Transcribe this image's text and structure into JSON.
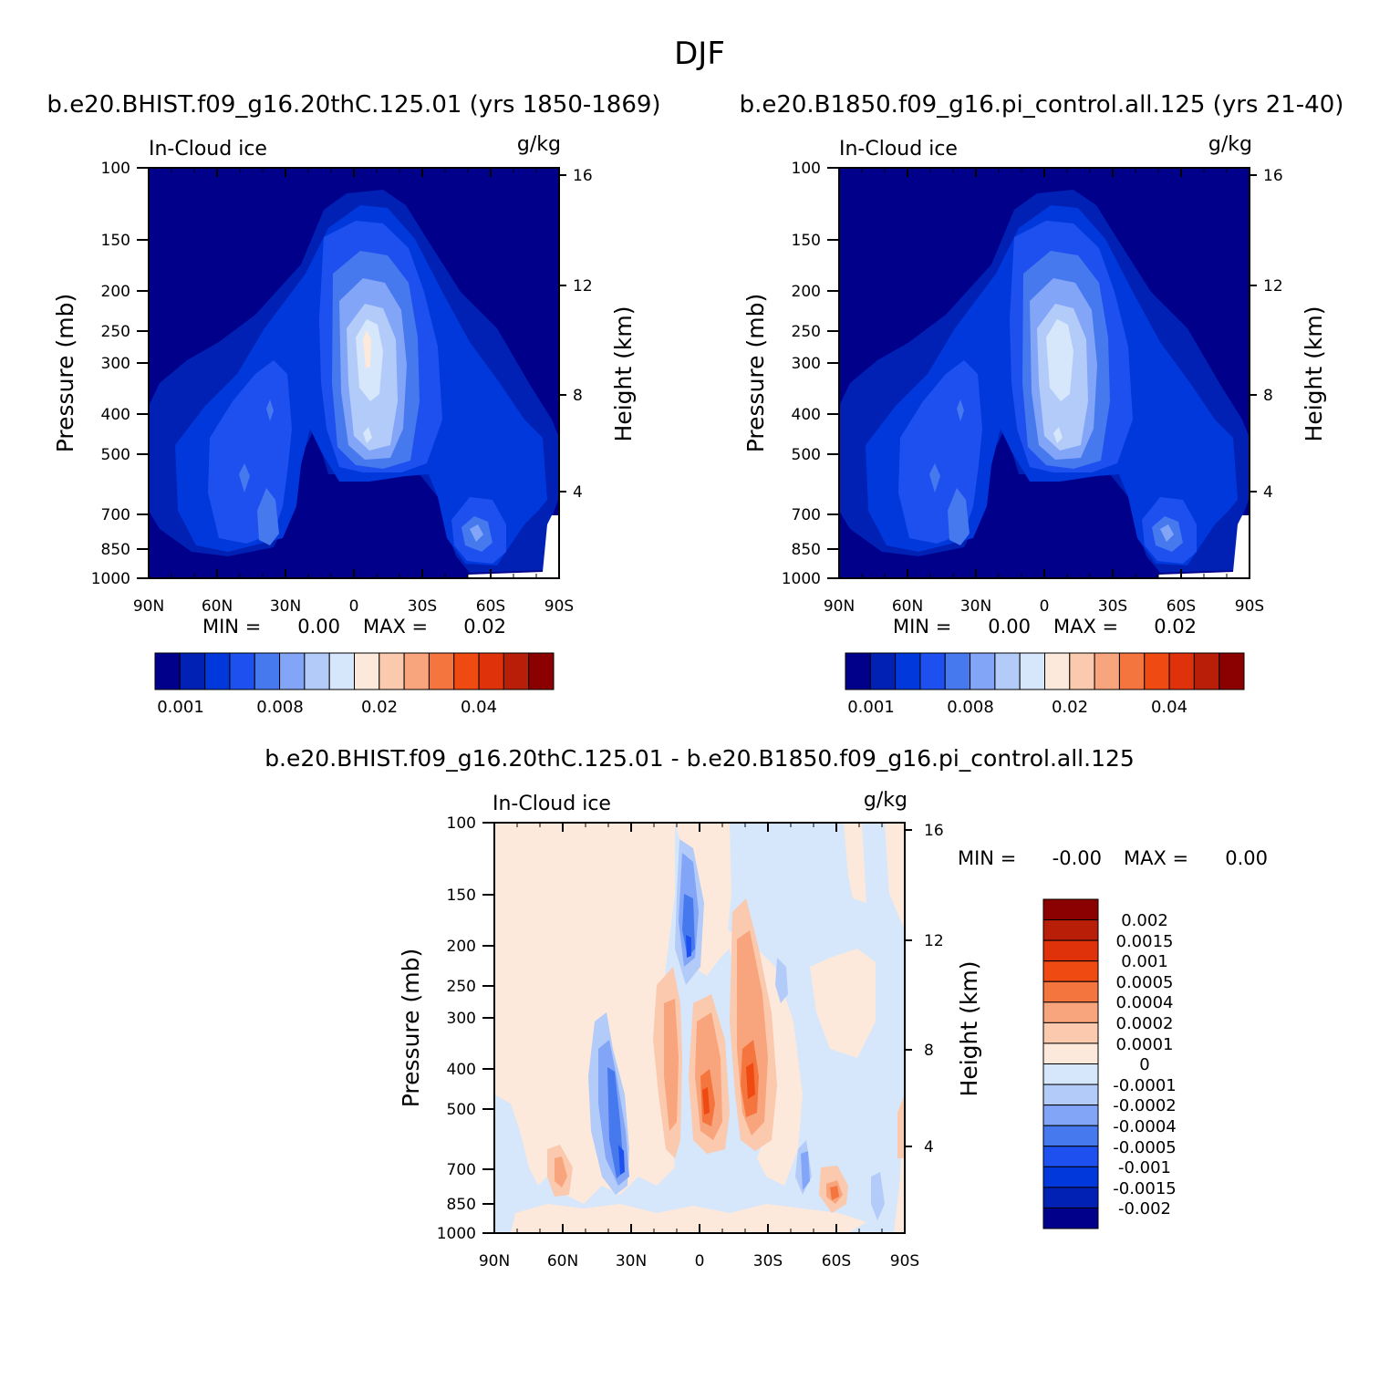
{
  "title": "DJF",
  "panels": [
    {
      "case_title": "b.e20.BHIST.f09_g16.20thC.125.01 (yrs 1850-1869)",
      "variable": "In-Cloud ice",
      "units": "g/kg",
      "min_label": "MIN =",
      "min_value": "0.00",
      "max_label": "MAX =",
      "max_value": "0.02"
    },
    {
      "case_title": "b.e20.B1850.f09_g16.pi_control.all.125 (yrs 21-40)",
      "variable": "In-Cloud ice",
      "units": "g/kg",
      "min_label": "MIN =",
      "min_value": "0.00",
      "max_label": "MAX =",
      "max_value": "0.02"
    },
    {
      "case_title": "b.e20.BHIST.f09_g16.20thC.125.01 - b.e20.B1850.f09_g16.pi_control.all.125",
      "variable": "In-Cloud ice",
      "units": "g/kg",
      "min_label": "MIN =",
      "min_value": "-0.00",
      "max_label": "MAX =",
      "max_value": "0.00"
    }
  ],
  "axes": {
    "pressure_label": "Pressure (mb)",
    "height_label": "Height (km)",
    "pressure_ticks": [
      "100",
      "150",
      "200",
      "250",
      "300",
      "400",
      "500",
      "700",
      "850",
      "1000"
    ],
    "height_ticks": [
      "16",
      "12",
      "8",
      "4"
    ],
    "lat_ticks": [
      "90N",
      "60N",
      "30N",
      "0",
      "30S",
      "60S",
      "90S"
    ]
  },
  "colorbar_abs": {
    "colors": [
      "#00008b",
      "#0021b4",
      "#0038dc",
      "#1e50f0",
      "#4678ee",
      "#82a5f7",
      "#b2cbf9",
      "#d6e6fb",
      "#fce9dc",
      "#fbc9ad",
      "#f8a47c",
      "#f4753e",
      "#ee4a12",
      "#e0320a",
      "#b81e08",
      "#8b0000"
    ],
    "labels": [
      "0.001",
      "0.008",
      "0.02",
      "0.04"
    ]
  },
  "colorbar_diff": {
    "colors_top_to_bottom": [
      "#8b0000",
      "#b81e08",
      "#e0320a",
      "#ee4a12",
      "#f4753e",
      "#f8a47c",
      "#fbc9ad",
      "#fce9dc",
      "#d6e6fb",
      "#b2cbf9",
      "#82a5f7",
      "#4678ee",
      "#1e50f0",
      "#0038dc",
      "#0021b4",
      "#00008b"
    ],
    "labels": [
      "0.002",
      "0.0015",
      "0.001",
      "0.0005",
      "0.0004",
      "0.0002",
      "0.0001",
      "0",
      "-0.0001",
      "-0.0002",
      "-0.0004",
      "-0.0005",
      "-0.001",
      "-0.0015",
      "-0.002"
    ]
  },
  "chart_data": [
    {
      "type": "heatmap",
      "title": "In-Cloud ice",
      "subtitle": "b.e20.BHIST.f09_g16.20thC.125.01 (yrs 1850-1869)",
      "units": "g/kg",
      "xlabel": "",
      "ylabel": "Pressure (mb)",
      "y2label": "Height (km)",
      "x_ticks": [
        "90N",
        "60N",
        "30N",
        "0",
        "30S",
        "60S",
        "90S"
      ],
      "xlim": [
        90,
        -90
      ],
      "ylim": [
        1000,
        100
      ],
      "y_scale": "log",
      "levels": [
        0.001,
        0.002,
        0.004,
        0.006,
        0.008,
        0.01,
        0.015,
        0.02,
        0.025,
        0.03,
        0.035,
        0.04,
        0.045,
        0.05,
        0.055
      ],
      "features": [
        {
          "lat": 0,
          "p_top": 215,
          "p_bottom": 620,
          "peak": 0.02,
          "note": "tropical maximum near 300 mb"
        },
        {
          "lat": 40,
          "p_top": 310,
          "p_bottom": 780,
          "peak": 0.008
        },
        {
          "lat": -55,
          "p_top": 640,
          "p_bottom": 900,
          "peak": 0.008
        }
      ],
      "min": 0.0,
      "max": 0.02
    },
    {
      "type": "heatmap",
      "title": "In-Cloud ice",
      "subtitle": "b.e20.B1850.f09_g16.pi_control.all.125 (yrs 21-40)",
      "units": "g/kg",
      "xlabel": "",
      "ylabel": "Pressure (mb)",
      "y2label": "Height (km)",
      "x_ticks": [
        "90N",
        "60N",
        "30N",
        "0",
        "30S",
        "60S",
        "90S"
      ],
      "xlim": [
        90,
        -90
      ],
      "ylim": [
        1000,
        100
      ],
      "y_scale": "log",
      "levels": [
        0.001,
        0.002,
        0.004,
        0.006,
        0.008,
        0.01,
        0.015,
        0.02,
        0.025,
        0.03,
        0.035,
        0.04,
        0.045,
        0.05,
        0.055
      ],
      "features": [
        {
          "lat": 0,
          "p_top": 215,
          "p_bottom": 620,
          "peak": 0.018,
          "note": "tropical maximum near 300 mb"
        },
        {
          "lat": 40,
          "p_top": 310,
          "p_bottom": 780,
          "peak": 0.008
        },
        {
          "lat": -55,
          "p_top": 640,
          "p_bottom": 900,
          "peak": 0.008
        }
      ],
      "min": 0.0,
      "max": 0.02
    },
    {
      "type": "heatmap",
      "title": "In-Cloud ice",
      "subtitle": "b.e20.BHIST.f09_g16.20thC.125.01 - b.e20.B1850.f09_g16.pi_control.all.125",
      "units": "g/kg",
      "xlabel": "",
      "ylabel": "Pressure (mb)",
      "y2label": "Height (km)",
      "x_ticks": [
        "90N",
        "60N",
        "30N",
        "0",
        "30S",
        "60S",
        "90S"
      ],
      "xlim": [
        90,
        -90
      ],
      "ylim": [
        1000,
        100
      ],
      "y_scale": "log",
      "levels": [
        -0.002,
        -0.0015,
        -0.001,
        -0.0005,
        -0.0004,
        -0.0002,
        -0.0001,
        0,
        0.0001,
        0.0002,
        0.0004,
        0.0005,
        0.001,
        0.0015,
        0.002
      ],
      "features": [
        {
          "lat": 4,
          "p_top": 160,
          "p_bottom": 340,
          "sign": "negative"
        },
        {
          "lat": -4,
          "p_top": 260,
          "p_bottom": 620,
          "sign": "positive"
        },
        {
          "lat": -18,
          "p_top": 160,
          "p_bottom": 620,
          "sign": "positive"
        },
        {
          "lat": 36,
          "p_top": 330,
          "p_bottom": 790,
          "sign": "negative"
        },
        {
          "lat": 58,
          "p_top": 640,
          "p_bottom": 880,
          "sign": "positive"
        },
        {
          "lat": -58,
          "p_top": 760,
          "p_bottom": 900,
          "sign": "positive"
        }
      ],
      "min": -0.0,
      "max": 0.0
    }
  ]
}
